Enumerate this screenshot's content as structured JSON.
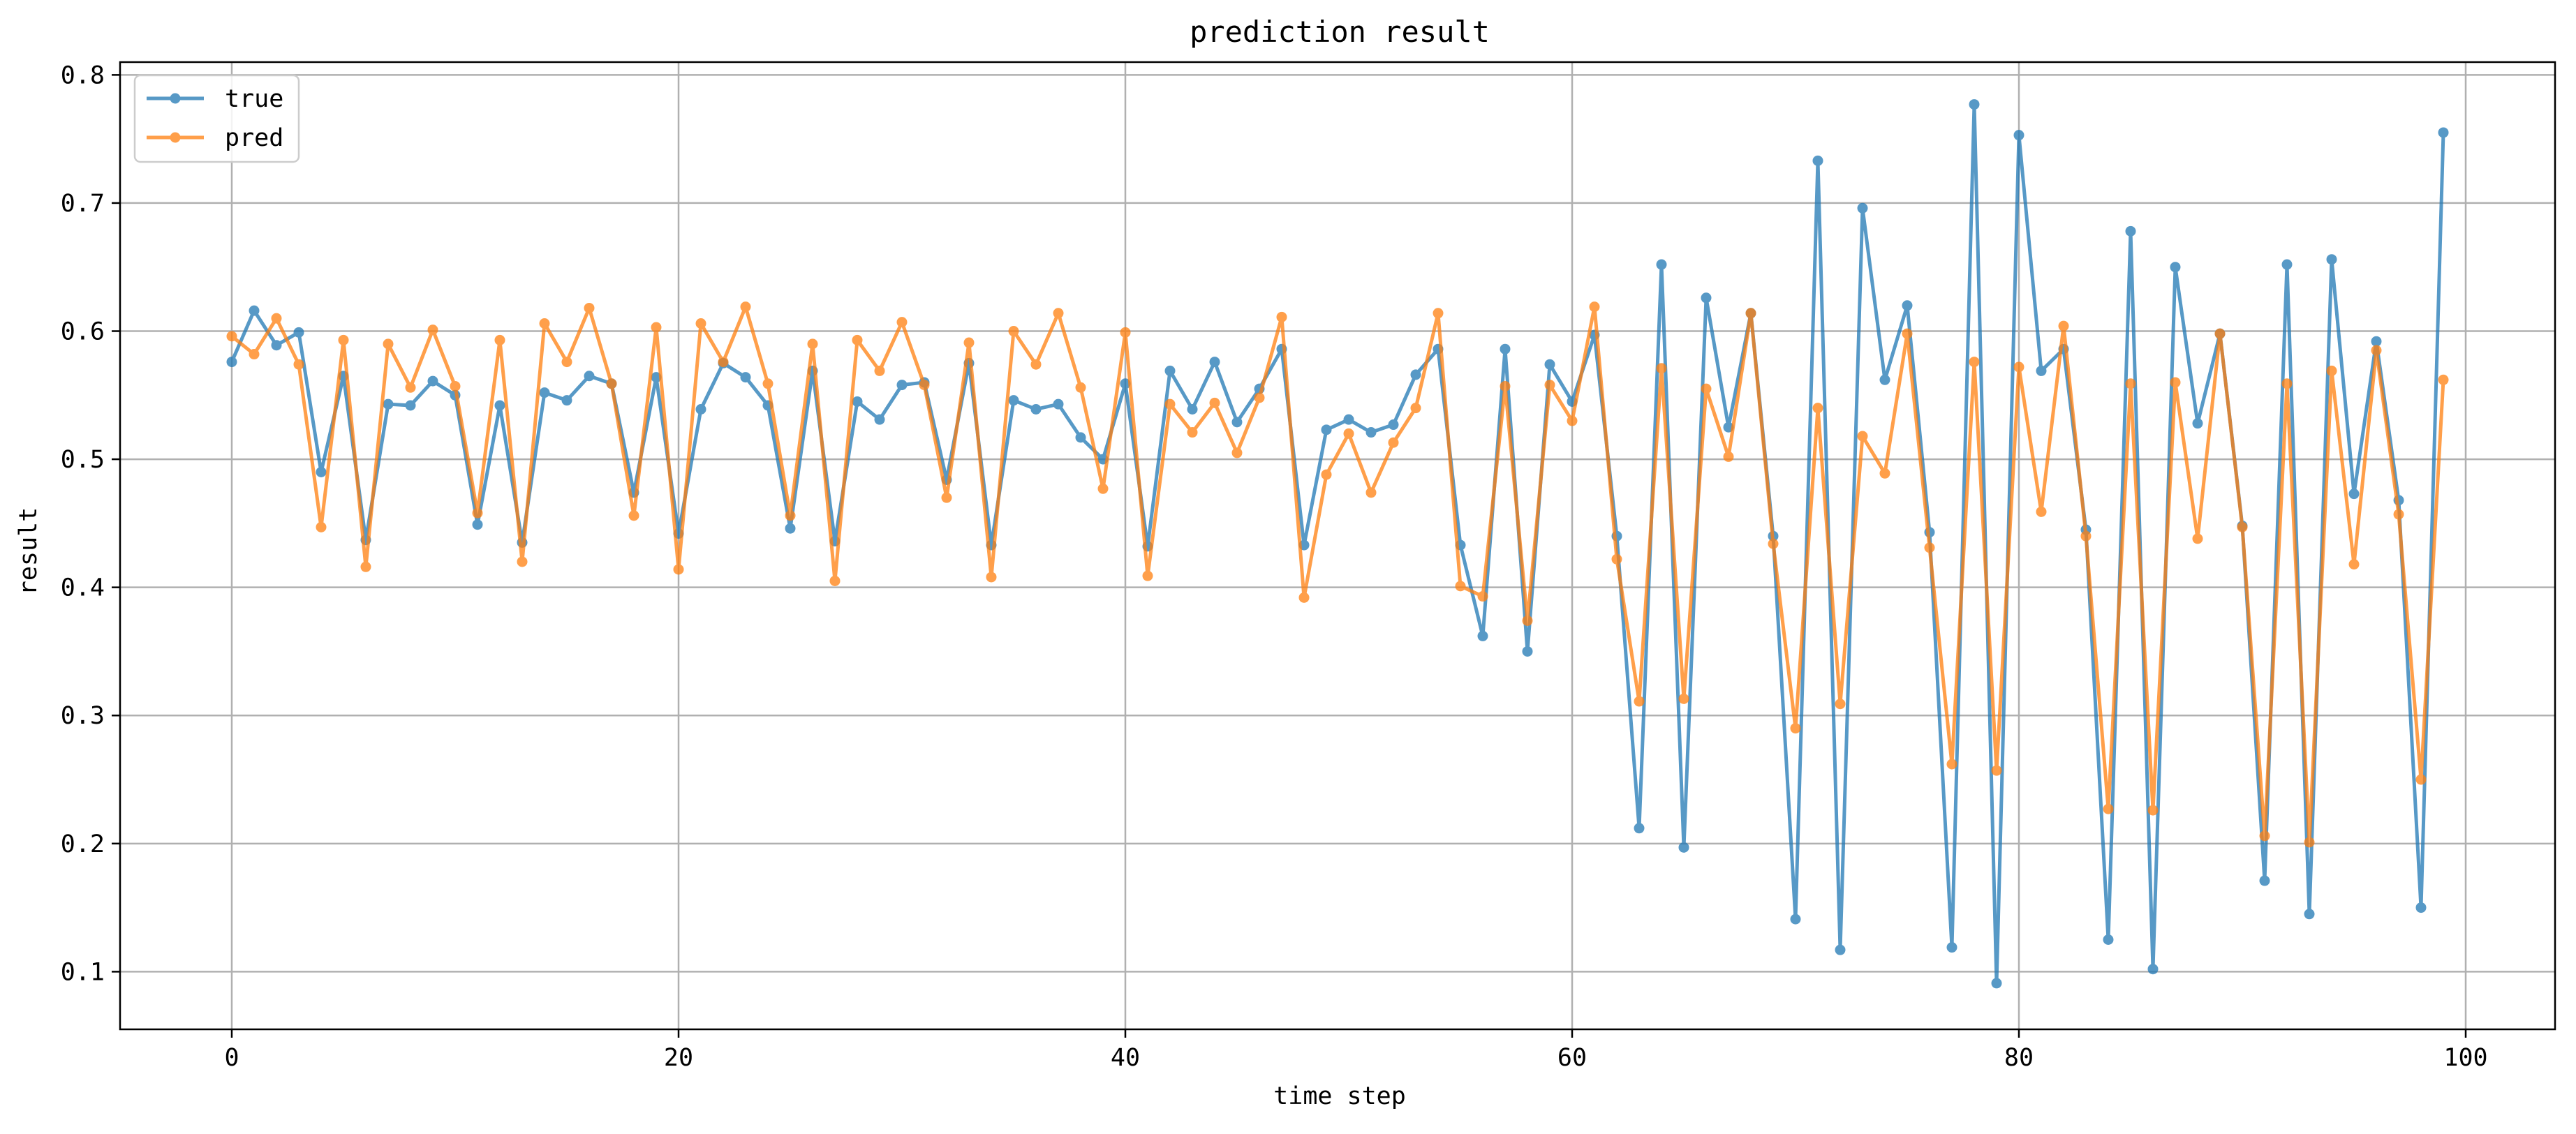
{
  "chart_data": {
    "type": "line",
    "title": "prediction result",
    "xlabel": "time step",
    "ylabel": "result",
    "xlim": [
      -5,
      104
    ],
    "ylim": [
      0.055,
      0.81
    ],
    "xticks": [
      0,
      20,
      40,
      60,
      80,
      100
    ],
    "yticks": [
      0.1,
      0.2,
      0.3,
      0.4,
      0.5,
      0.6,
      0.7,
      0.8
    ],
    "grid": true,
    "legend": "top-left",
    "x": [
      0,
      1,
      2,
      3,
      4,
      5,
      6,
      7,
      8,
      9,
      10,
      11,
      12,
      13,
      14,
      15,
      16,
      17,
      18,
      19,
      20,
      21,
      22,
      23,
      24,
      25,
      26,
      27,
      28,
      29,
      30,
      31,
      32,
      33,
      34,
      35,
      36,
      37,
      38,
      39,
      40,
      41,
      42,
      43,
      44,
      45,
      46,
      47,
      48,
      49,
      50,
      51,
      52,
      53,
      54,
      55,
      56,
      57,
      58,
      59,
      60,
      61,
      62,
      63,
      64,
      65,
      66,
      67,
      68,
      69,
      70,
      71,
      72,
      73,
      74,
      75,
      76,
      77,
      78,
      79,
      80,
      81,
      82,
      83,
      84,
      85,
      86,
      87,
      88,
      89,
      90,
      91,
      92,
      93,
      94,
      95,
      96,
      97,
      98,
      99
    ],
    "series": [
      {
        "name": "true",
        "color": "#1f77b4",
        "values": [
          0.576,
          0.616,
          0.589,
          0.599,
          0.49,
          0.565,
          0.437,
          0.543,
          0.542,
          0.561,
          0.55,
          0.449,
          0.542,
          0.435,
          0.552,
          0.546,
          0.565,
          0.559,
          0.474,
          0.564,
          0.442,
          0.539,
          0.575,
          0.564,
          0.542,
          0.446,
          0.569,
          0.436,
          0.545,
          0.531,
          0.558,
          0.56,
          0.484,
          0.575,
          0.433,
          0.546,
          0.539,
          0.543,
          0.517,
          0.5,
          0.559,
          0.432,
          0.569,
          0.539,
          0.576,
          0.529,
          0.555,
          0.586,
          0.433,
          0.523,
          0.531,
          0.521,
          0.527,
          0.566,
          0.586,
          0.433,
          0.362,
          0.586,
          0.35,
          0.574,
          0.545,
          0.597,
          0.44,
          0.212,
          0.652,
          0.197,
          0.626,
          0.525,
          0.614,
          0.44,
          0.141,
          0.733,
          0.117,
          0.696,
          0.562,
          0.62,
          0.443,
          0.119,
          0.777,
          0.091,
          0.753,
          0.569,
          0.586,
          0.445,
          0.125,
          0.678,
          0.102,
          0.65,
          0.528,
          0.598,
          0.448,
          0.171,
          0.652,
          0.145,
          0.656,
          0.473,
          0.592,
          0.468,
          0.15,
          0.755
        ]
      },
      {
        "name": "pred",
        "color": "#ff7f0e",
        "values": [
          0.596,
          0.582,
          0.61,
          0.574,
          0.447,
          0.593,
          0.416,
          0.59,
          0.556,
          0.601,
          0.557,
          0.458,
          0.593,
          0.42,
          0.606,
          0.576,
          0.618,
          0.559,
          0.456,
          0.603,
          0.414,
          0.606,
          0.576,
          0.619,
          0.559,
          0.456,
          0.59,
          0.405,
          0.593,
          0.569,
          0.607,
          0.558,
          0.47,
          0.591,
          0.408,
          0.6,
          0.574,
          0.614,
          0.556,
          0.477,
          0.599,
          0.409,
          0.543,
          0.521,
          0.544,
          0.505,
          0.548,
          0.611,
          0.392,
          0.488,
          0.52,
          0.474,
          0.513,
          0.54,
          0.614,
          0.401,
          0.393,
          0.557,
          0.374,
          0.558,
          0.53,
          0.619,
          0.422,
          0.311,
          0.571,
          0.313,
          0.555,
          0.502,
          0.614,
          0.434,
          0.29,
          0.54,
          0.309,
          0.518,
          0.489,
          0.598,
          0.431,
          0.262,
          0.576,
          0.257,
          0.572,
          0.459,
          0.604,
          0.44,
          0.227,
          0.559,
          0.226,
          0.56,
          0.438,
          0.598,
          0.447,
          0.206,
          0.559,
          0.201,
          0.569,
          0.418,
          0.585,
          0.457,
          0.25,
          0.562
        ]
      }
    ]
  }
}
